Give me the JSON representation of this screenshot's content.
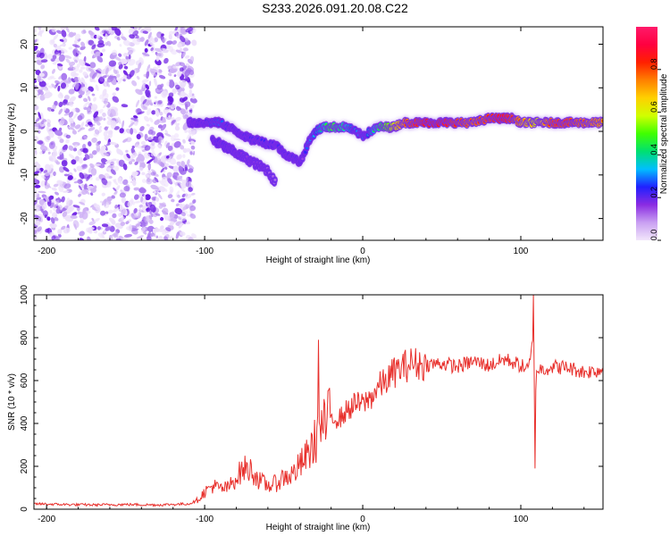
{
  "title": "S233.2026.091.20.08.C22",
  "colors": {
    "snr_line": "#e8302c",
    "axis": "#000000",
    "noise_dark": "#6a14e0",
    "noise_light": "#d9c4f7"
  },
  "chart_data": [
    {
      "type": "heatmap",
      "title": "",
      "xlabel": "Height of straight line (km)",
      "ylabel": "Frequency (Hz)",
      "xlim": [
        -208,
        152
      ],
      "ylim": [
        -25,
        24
      ],
      "xticks": [
        -200,
        -100,
        0,
        100
      ],
      "yticks": [
        -20,
        -10,
        0,
        10,
        20
      ],
      "colorbar": {
        "label": "Normalized spectral amplitude",
        "range": [
          0.0,
          1.0
        ],
        "ticks": [
          "0.0",
          "0.2",
          "0.4",
          "0.6",
          "0.8"
        ],
        "tick_values": [
          0.0,
          0.2,
          0.4,
          0.6,
          0.8
        ],
        "colors": [
          "#f2e6fb",
          "#c9a0f2",
          "#8a2be2",
          "#2020ff",
          "#00bfff",
          "#00e070",
          "#40ff00",
          "#d0ff00",
          "#ffd000",
          "#ff8000",
          "#ff2000",
          "#ff0040",
          "#ff1a6a"
        ]
      },
      "noise_region_x": [
        -208,
        -110
      ],
      "ridge": {
        "x": [
          -110,
          -100,
          -95,
          -90,
          -85,
          -80,
          -75,
          -70,
          -65,
          -60,
          -55,
          -50,
          -45,
          -40,
          -38,
          -35,
          -30,
          -25,
          -20,
          -15,
          -10,
          -5,
          0,
          5,
          10,
          15,
          20,
          25,
          30,
          40,
          50,
          60,
          70,
          80,
          85,
          90,
          95,
          100,
          105,
          110,
          115,
          120,
          130,
          140,
          152
        ],
        "y": [
          2,
          2,
          2,
          2,
          1,
          0,
          -1,
          -2,
          -2,
          -3,
          -3,
          -5,
          -6,
          -7,
          -6,
          -3,
          0,
          1,
          1,
          1,
          1,
          0,
          -1,
          0,
          1,
          1,
          1,
          2,
          2,
          2,
          2,
          2,
          2,
          3,
          3,
          3,
          3,
          2,
          2,
          2,
          2,
          2,
          2,
          2,
          2
        ],
        "amplitude": [
          0.15,
          0.25,
          0.3,
          0.3,
          0.25,
          0.2,
          0.2,
          0.22,
          0.22,
          0.25,
          0.22,
          0.2,
          0.2,
          0.2,
          0.15,
          0.3,
          0.35,
          0.45,
          0.55,
          0.5,
          0.45,
          0.35,
          0.3,
          0.4,
          0.5,
          0.6,
          0.7,
          0.8,
          0.9,
          0.95,
          0.95,
          0.9,
          0.85,
          0.9,
          0.95,
          0.95,
          0.9,
          0.8,
          0.75,
          0.7,
          0.8,
          0.9,
          0.9,
          0.85,
          0.8
        ]
      },
      "secondary_ridge": {
        "x": [
          -95,
          -90,
          -85,
          -80,
          -75,
          -70,
          -65,
          -60,
          -55
        ],
        "y": [
          -2,
          -3,
          -4,
          -5,
          -6,
          -7,
          -8,
          -9,
          -12
        ],
        "amplitude": [
          0.2,
          0.2,
          0.18,
          0.18,
          0.16,
          0.16,
          0.15,
          0.14,
          0.12
        ]
      }
    },
    {
      "type": "line",
      "title": "",
      "xlabel": "Height of straight line (km)",
      "ylabel": "SNR (10 * v/v)",
      "xlim": [
        -208,
        152
      ],
      "ylim": [
        0,
        1000
      ],
      "xticks": [
        -200,
        -100,
        0,
        100
      ],
      "yticks": [
        0,
        200,
        400,
        600,
        800,
        1000
      ],
      "series": [
        {
          "name": "SNR",
          "x": [
            -208,
            -190,
            -170,
            -150,
            -130,
            -110,
            -105,
            -100,
            -95,
            -90,
            -85,
            -80,
            -75,
            -70,
            -65,
            -60,
            -55,
            -50,
            -45,
            -40,
            -35,
            -30,
            -28,
            -25,
            -20,
            -15,
            -10,
            -5,
            0,
            5,
            10,
            15,
            20,
            25,
            30,
            40,
            50,
            60,
            70,
            80,
            90,
            100,
            105,
            108,
            109,
            110,
            115,
            120,
            130,
            140,
            152
          ],
          "values": [
            25,
            22,
            20,
            22,
            20,
            25,
            40,
            80,
            110,
            95,
            100,
            150,
            190,
            180,
            130,
            110,
            120,
            150,
            160,
            200,
            250,
            320,
            360,
            380,
            440,
            420,
            460,
            490,
            490,
            520,
            570,
            600,
            640,
            660,
            680,
            675,
            680,
            665,
            690,
            670,
            700,
            670,
            650,
            800,
            500,
            650,
            655,
            665,
            660,
            640,
            650
          ]
        }
      ],
      "spikes": [
        {
          "x": -28,
          "value": 790
        },
        {
          "x": 108,
          "value": 1000
        },
        {
          "x": 109,
          "value": 190
        }
      ]
    }
  ]
}
